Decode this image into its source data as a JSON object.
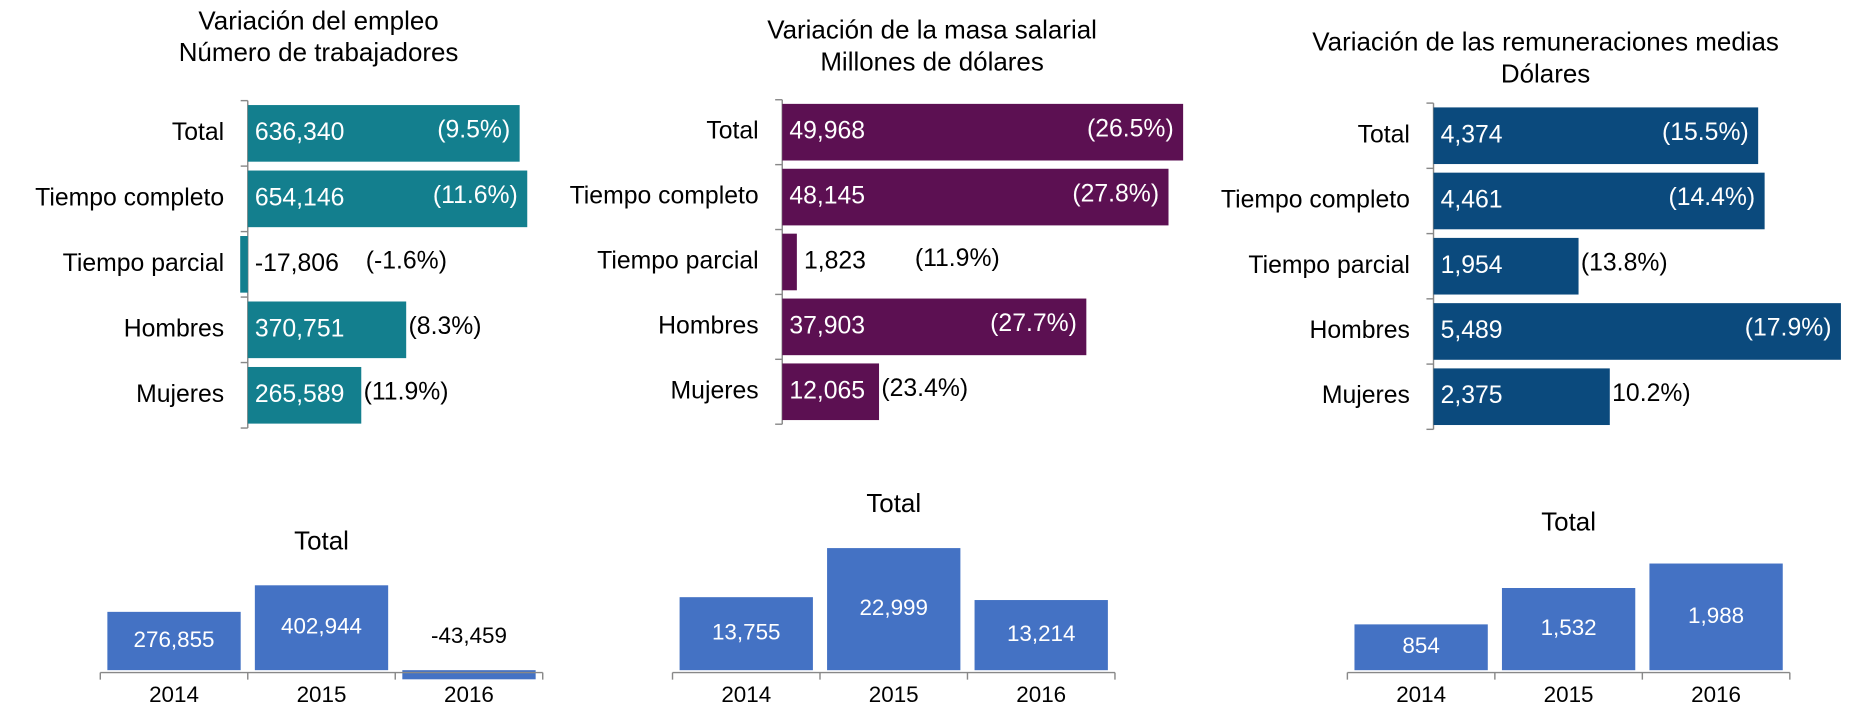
{
  "chart_data": [
    {
      "type": "barh",
      "title": "Variación del empleo",
      "subtitle": "Número de trabajadores",
      "categories": [
        "Total",
        "Tiempo completo",
        "Tiempo parcial",
        "Hombres",
        "Mujeres"
      ],
      "values": [
        636340,
        654146,
        -17806,
        370751,
        265589
      ],
      "value_labels": [
        "636,340",
        "654,146",
        "-17,806",
        "370,751",
        "265,589"
      ],
      "annotations": [
        "(9.5%)",
        "(11.6%)",
        "(-1.6%)",
        "(8.3%)",
        "(11.9%)"
      ],
      "color": "#137f8e",
      "xlim": [
        -20000,
        660000
      ]
    },
    {
      "type": "barh",
      "title": "Variación de la masa salarial",
      "subtitle": "Millones de dólares",
      "categories": [
        "Total",
        "Tiempo completo",
        "Tiempo parcial",
        "Hombres",
        "Mujeres"
      ],
      "values": [
        49968,
        48145,
        1823,
        37903,
        12065
      ],
      "value_labels": [
        "49,968",
        "48,145",
        "1,823",
        "37,903",
        "12,065"
      ],
      "annotations": [
        "(26.5%)",
        "(27.8%)",
        "(11.9%)",
        "(27.7%)",
        "(23.4%)"
      ],
      "color": "#5c1052",
      "xlim": [
        0,
        50000
      ]
    },
    {
      "type": "barh",
      "title": "Variación de las remuneraciones medias",
      "subtitle": "Dólares",
      "categories": [
        "Total",
        "Tiempo completo",
        "Tiempo parcial",
        "Hombres",
        "Mujeres"
      ],
      "values": [
        4374,
        4461,
        1954,
        5489,
        2375
      ],
      "value_labels": [
        "4,374",
        "4,461",
        "1,954",
        "5,489",
        "2,375"
      ],
      "annotations": [
        "(15.5%)",
        "(14.4%)",
        "(13.8%)",
        "(17.9%)",
        "10.2%)"
      ],
      "color": "#0b4a7d",
      "xlim": [
        0,
        5500
      ]
    },
    {
      "type": "bar",
      "title": "Total",
      "categories": [
        "2014",
        "2015",
        "2016"
      ],
      "values": [
        276855,
        402944,
        -43459
      ],
      "value_labels": [
        "276,855",
        "402,944",
        "-43,459"
      ],
      "color": "#4472c4",
      "ylim": [
        -45000,
        420000
      ]
    },
    {
      "type": "bar",
      "title": "Total",
      "categories": [
        "2014",
        "2015",
        "2016"
      ],
      "values": [
        13755,
        22999,
        13214
      ],
      "value_labels": [
        "13,755",
        "22,999",
        "13,214"
      ],
      "color": "#4472c4",
      "ylim": [
        0,
        25000
      ]
    },
    {
      "type": "bar",
      "title": "Total",
      "categories": [
        "2014",
        "2015",
        "2016"
      ],
      "values": [
        854,
        1532,
        1988
      ],
      "value_labels": [
        "854",
        "1,532",
        "1,988"
      ],
      "color": "#4472c4",
      "ylim": [
        0,
        2100
      ]
    }
  ]
}
